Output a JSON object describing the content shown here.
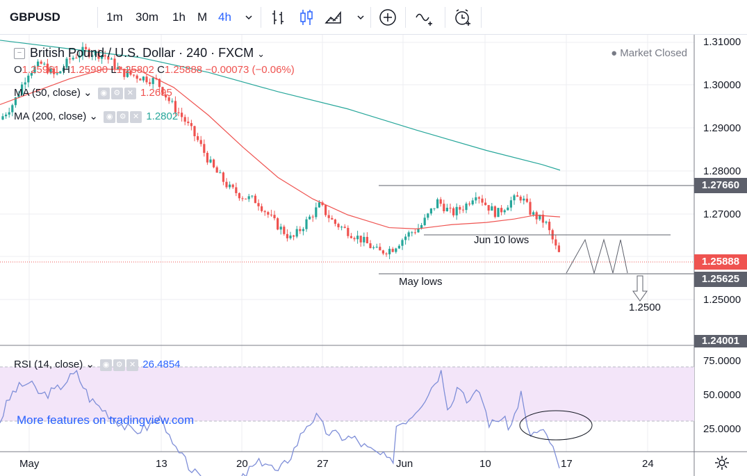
{
  "toolbar": {
    "symbol": "GBPUSD",
    "intervals": [
      "1m",
      "30m",
      "1h",
      "M",
      "4h"
    ],
    "active_interval": "4h",
    "icons": [
      "chevron-down-icon",
      "bar-chart-icon",
      "candles-icon",
      "area-chart-icon",
      "chevron-down-icon",
      "add-indicator-icon",
      "compare-icon",
      "alert-icon"
    ]
  },
  "legend": {
    "title": "British Pound / U.S. Dollar · 240 · FXCM",
    "ohlc": {
      "o_label": "O",
      "o_value": "1.25961",
      "h_label": "H",
      "h_value": "1.25990",
      "l_label": "L",
      "l_value": "1.25802",
      "c_label": "C",
      "c_value": "1.25888",
      "change": "−0.00073 (−0.06%)"
    },
    "ma50": {
      "label": "MA (50, close)",
      "value": "1.2695"
    },
    "ma200": {
      "label": "MA (200, close)",
      "value": "1.2802"
    },
    "rsi": {
      "label": "RSI (14, close)",
      "value": "26.4854"
    },
    "market_status": "Market Closed"
  },
  "promo": "More features on tradingview.com",
  "colors": {
    "up": "#26a69a",
    "down": "#ef5350",
    "ma50": "#ef5350",
    "ma200": "#26a69a",
    "rsi": "#7e8ed8",
    "accent": "#2962ff"
  },
  "price_axis": [
    "1.31000",
    "1.30000",
    "1.29000",
    "1.28000",
    "1.27000",
    "1.25000"
  ],
  "price_tags": {
    "level_top": "1.27660",
    "current": "1.25888",
    "level_bottom": "1.25625",
    "low": "1.24001"
  },
  "rsi_axis": [
    "75.0000",
    "50.0000",
    "25.0000"
  ],
  "date_axis": [
    "May",
    "13",
    "20",
    "27",
    "Jun",
    "10",
    "17",
    "24"
  ],
  "annotations": {
    "jun10": "Jun 10 lows",
    "may": "May lows",
    "target": "1.2500"
  }
}
